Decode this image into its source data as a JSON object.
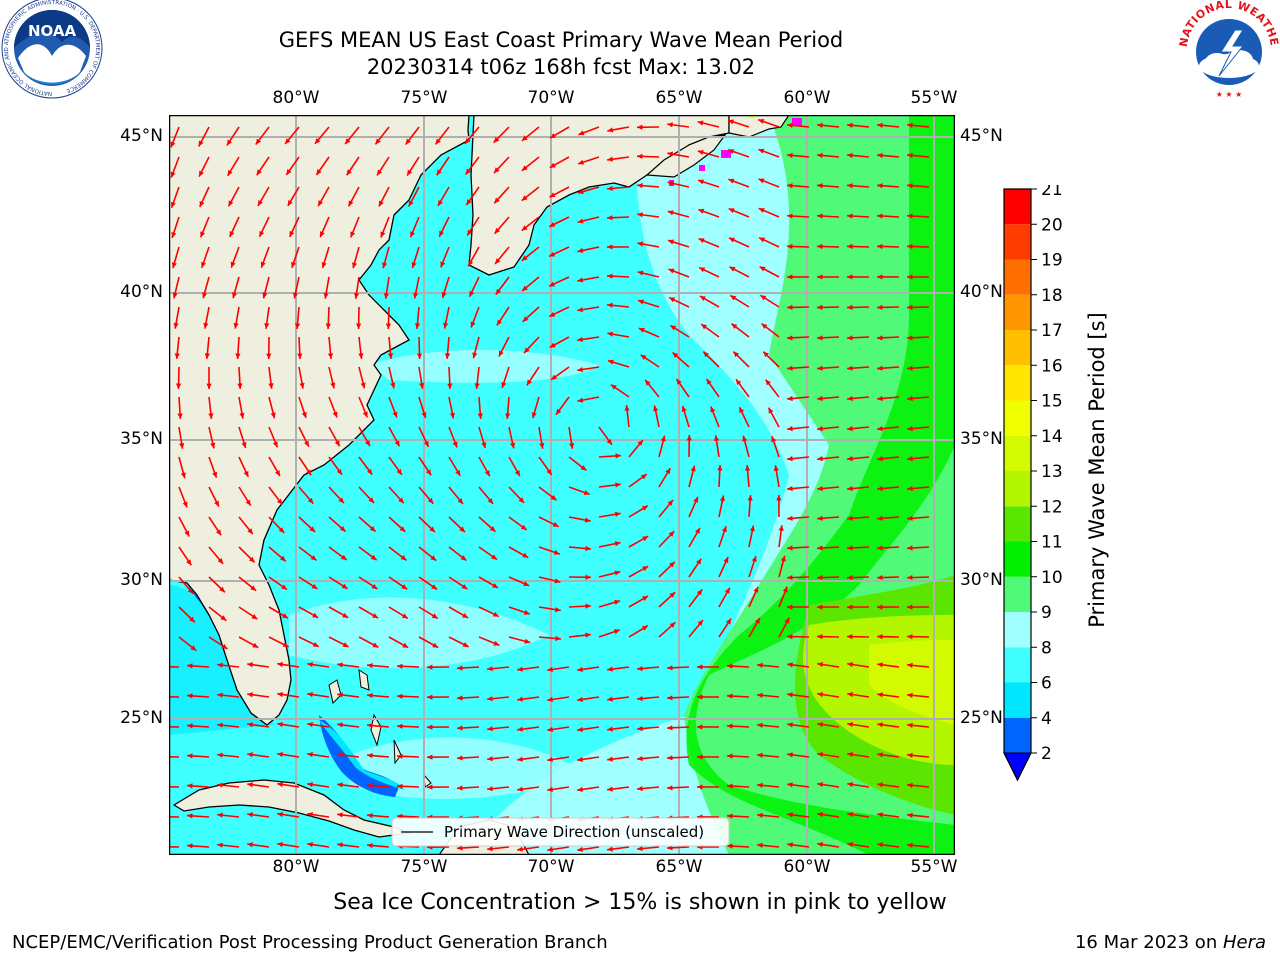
{
  "title": {
    "line1": "GEFS MEAN US East Coast Primary Wave Mean Period",
    "line2": "20230314 t06z 168h fcst   Max: 13.02"
  },
  "logos": {
    "noaa_text": "NOAA",
    "noaa_ring": "NATIONAL OCEANIC AND ATMOSPHERIC ADMINISTRATION · U.S. DEPARTMENT OF COMMERCE",
    "nws_ring": "NATIONAL WEATHER SERVICE"
  },
  "map": {
    "lon_labels": [
      "80°W",
      "75°W",
      "70°W",
      "65°W",
      "60°W",
      "55°W"
    ],
    "lat_labels": [
      "45°N",
      "40°N",
      "35°N",
      "30°N",
      "25°N"
    ],
    "legend_label": "Primary Wave Direction (unscaled)",
    "colors": {
      "land": "#efefdf",
      "coast": "#000000",
      "grid": "#b0b0b0",
      "arrow": "#ff0000"
    }
  },
  "colorbar": {
    "label": "Primary Wave Mean Period [s]",
    "ticks": [
      "2",
      "4",
      "6",
      "8",
      "9",
      "10",
      "11",
      "12",
      "13",
      "14",
      "15",
      "16",
      "17",
      "18",
      "19",
      "20",
      "21"
    ],
    "colors": [
      "#0064ff",
      "#00e6ff",
      "#40ffff",
      "#a0ffff",
      "#50fa78",
      "#00f000",
      "#5ae600",
      "#b4f500",
      "#d2fa00",
      "#f0ff00",
      "#ffe600",
      "#ffbe00",
      "#ff9600",
      "#ff6e00",
      "#ff3c00",
      "#ff0000"
    ],
    "under_color": "#0000ff"
  },
  "subcaption": "Sea Ice Concentration > 15% is shown in pink to yellow",
  "footer": {
    "left": "NCEP/EMC/Verification Post Processing Product Generation Branch",
    "right_prefix": "16 Mar 2023 on ",
    "right_machine": "Hera"
  }
}
